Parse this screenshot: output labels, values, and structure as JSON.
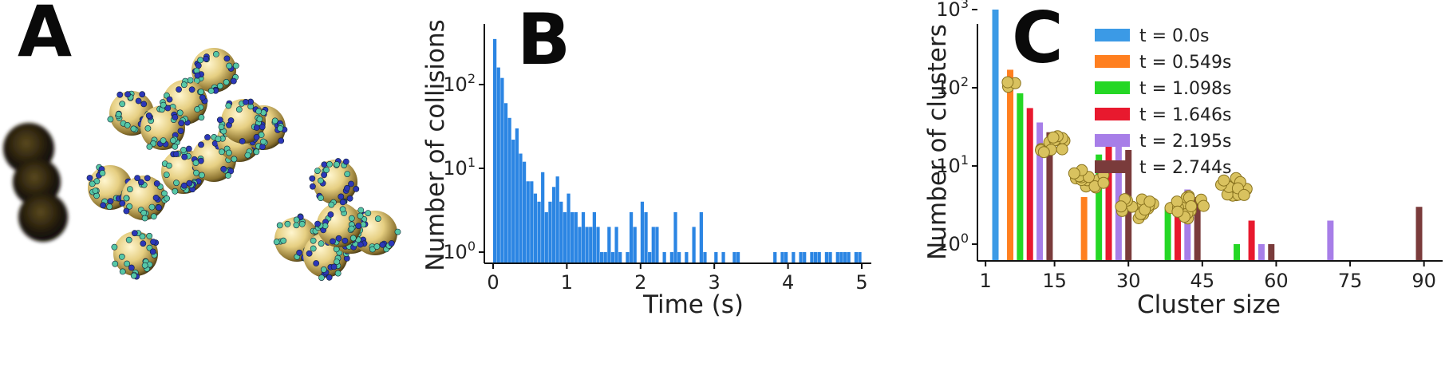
{
  "panels": {
    "a": {
      "letter": "A"
    },
    "b": {
      "letter": "B"
    },
    "c": {
      "letter": "C"
    }
  },
  "chart_data": [
    {
      "type": "bar",
      "panel": "B",
      "xlabel": "Time (s)",
      "ylabel": "Number of collisions",
      "xlim": [
        0,
        5
      ],
      "yscale": "log",
      "xticks": [
        "0",
        "1",
        "2",
        "3",
        "4",
        "5"
      ],
      "yticks": [
        "10^0",
        "10^1",
        "10^2"
      ],
      "color": "#2b85e3",
      "bin_width": 0.05,
      "x": [
        0.025,
        0.075,
        0.125,
        0.175,
        0.225,
        0.275,
        0.325,
        0.375,
        0.425,
        0.475,
        0.525,
        0.575,
        0.625,
        0.675,
        0.725,
        0.775,
        0.825,
        0.875,
        0.925,
        0.975,
        1.025,
        1.075,
        1.125,
        1.175,
        1.225,
        1.275,
        1.325,
        1.375,
        1.425,
        1.475,
        1.525,
        1.575,
        1.625,
        1.675,
        1.725,
        1.775,
        1.825,
        1.875,
        1.925,
        1.975,
        2.025,
        2.075,
        2.125,
        2.175,
        2.225,
        2.275,
        2.325,
        2.375,
        2.425,
        2.475,
        2.525,
        2.575,
        2.625,
        2.675,
        2.725,
        2.775,
        2.825,
        2.875,
        2.925,
        2.975,
        3.025,
        3.075,
        3.125,
        3.175,
        3.225,
        3.275,
        3.325,
        3.825,
        3.875,
        3.925,
        3.975,
        4.025,
        4.075,
        4.125,
        4.175,
        4.225,
        4.275,
        4.325,
        4.375,
        4.425,
        4.475,
        4.525,
        4.575,
        4.625,
        4.675,
        4.725,
        4.775,
        4.825,
        4.875,
        4.925,
        4.975
      ],
      "values": [
        350,
        160,
        120,
        60,
        40,
        22,
        30,
        15,
        12,
        7,
        7,
        5,
        4,
        9,
        3,
        4,
        6,
        8,
        4,
        3,
        5,
        3,
        3,
        2,
        3,
        2,
        2,
        3,
        2,
        1,
        1,
        2,
        1,
        2,
        1,
        0,
        1,
        3,
        2,
        0,
        4,
        3,
        1,
        2,
        2,
        0,
        1,
        0,
        1,
        3,
        1,
        0,
        1,
        0,
        2,
        0,
        3,
        1,
        0,
        0,
        1,
        0,
        1,
        0,
        0,
        1,
        1,
        1,
        0,
        1,
        1,
        0,
        1,
        0,
        1,
        1,
        0,
        1,
        1,
        1,
        0,
        1,
        1,
        0,
        1,
        1,
        1,
        1,
        0,
        1,
        1
      ]
    },
    {
      "type": "bar",
      "panel": "C",
      "xlabel": "Cluster size",
      "ylabel": "Number of clusters",
      "yscale": "log",
      "xlim": [
        0,
        92
      ],
      "xticks": [
        "1",
        "15",
        "30",
        "45",
        "60",
        "75",
        "90"
      ],
      "yticks": [
        "10^0",
        "10^1",
        "10^2",
        "10^3"
      ],
      "legend": "top-right",
      "series": [
        {
          "name": "t = 0.0s",
          "color": "#3b9ae6",
          "x": [
            3
          ],
          "values": [
            1000
          ]
        },
        {
          "name": "t = 0.549s",
          "color": "#ff7f1f",
          "x": [
            6,
            21
          ],
          "values": [
            170,
            4
          ]
        },
        {
          "name": "t = 1.098s",
          "color": "#25d725",
          "x": [
            8,
            24,
            38,
            52
          ],
          "values": [
            85,
            14,
            3,
            1
          ]
        },
        {
          "name": "t = 1.646s",
          "color": "#e8192e",
          "x": [
            10,
            26,
            40,
            55
          ],
          "values": [
            55,
            21,
            3,
            2
          ]
        },
        {
          "name": "t = 2.195s",
          "color": "#a77ee8",
          "x": [
            12,
            28,
            42,
            57,
            71
          ],
          "values": [
            36,
            18,
            5,
            1,
            2
          ]
        },
        {
          "name": "t = 2.744s",
          "color": "#7a3b3b",
          "x": [
            14,
            30,
            44,
            59,
            89
          ],
          "values": [
            27,
            16,
            4,
            1,
            3
          ]
        }
      ]
    }
  ]
}
